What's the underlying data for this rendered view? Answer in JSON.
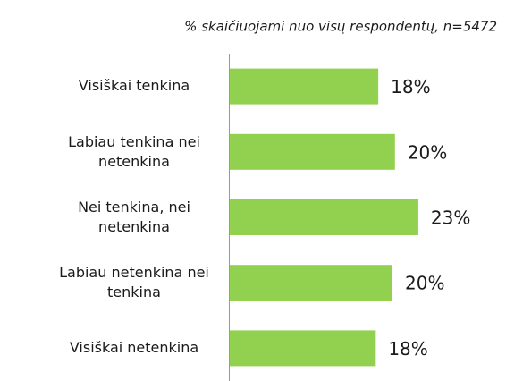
{
  "chart_data": {
    "type": "bar",
    "orientation": "horizontal",
    "subtitle": "% skaičiuojami nuo visų respondentų, n=5472",
    "categories": [
      "Visiškai tenkina",
      "Labiau tenkina nei\nnetenkina",
      "Nei tenkina, nei\nnetenkina",
      "Labiau netenkina nei\ntenkina",
      "Visiškai netenkina"
    ],
    "values": [
      17.8,
      19.8,
      22.6,
      19.5,
      17.5
    ],
    "value_labels": [
      "18%",
      "20%",
      "23%",
      "20%",
      "18%"
    ],
    "color": "#92d050",
    "xlim": [
      0,
      30
    ]
  }
}
